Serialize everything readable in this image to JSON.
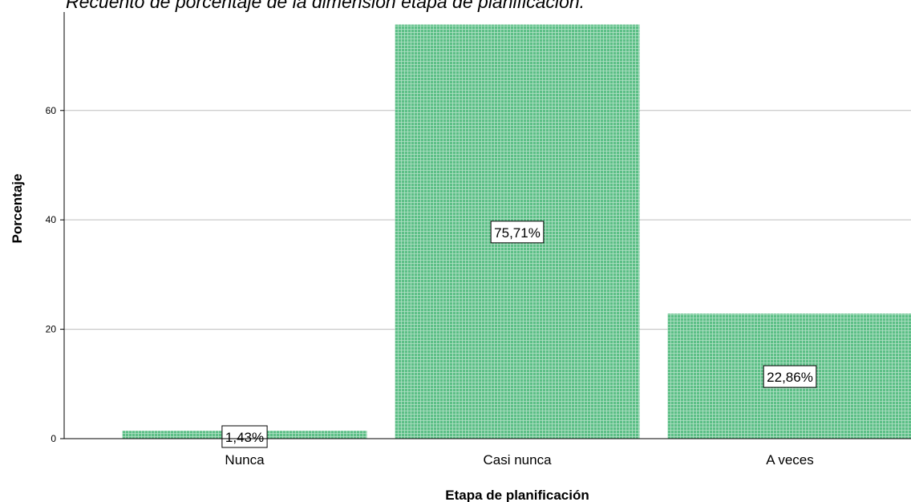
{
  "chart_data": {
    "type": "bar",
    "title": "Recuento de porcentaje de la dimensión etapa de planificación.",
    "x_label": "Etapa de planificación",
    "y_label": "Porcentaje",
    "categories": [
      "Nunca",
      "Casi nunca",
      "A veces"
    ],
    "values": [
      1.43,
      75.71,
      22.86
    ],
    "value_labels": [
      "1,43%",
      "75,71%",
      "22,86%"
    ],
    "color": "#5cbf86",
    "ylim": [
      0,
      78
    ],
    "yticks": [
      0,
      20,
      40,
      60
    ],
    "grid": true
  }
}
